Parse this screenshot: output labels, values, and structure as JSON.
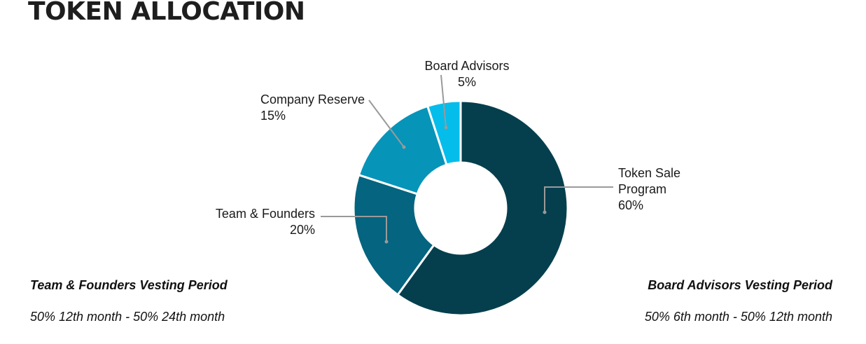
{
  "page": {
    "title": "TOKEN ALLOCATION"
  },
  "chart_data": {
    "type": "pie",
    "title": "TOKEN ALLOCATION",
    "donut": true,
    "slices": [
      {
        "label": "Token Sale Program",
        "label_lines": [
          "Token Sale",
          "Program"
        ],
        "value": 60,
        "value_text": "60%",
        "color": "#053f4e"
      },
      {
        "label": "Team & Founders",
        "label_lines": [
          "Team & Founders"
        ],
        "value": 20,
        "value_text": "20%",
        "color": "#05647f"
      },
      {
        "label": "Company Reserve",
        "label_lines": [
          "Company Reserve"
        ],
        "value": 15,
        "value_text": "15%",
        "color": "#0794b9"
      },
      {
        "label": "Board Advisors",
        "label_lines": [
          "Board Advisors"
        ],
        "value": 5,
        "value_text": "5%",
        "color": "#04bdeb"
      }
    ]
  },
  "vesting": {
    "left": {
      "heading": "Team & Founders Vesting Period",
      "detail": "50% 12th month - 50% 24th month"
    },
    "right": {
      "heading": "Board Advisors Vesting Period",
      "detail": "50% 6th month - 50% 12th month"
    }
  }
}
